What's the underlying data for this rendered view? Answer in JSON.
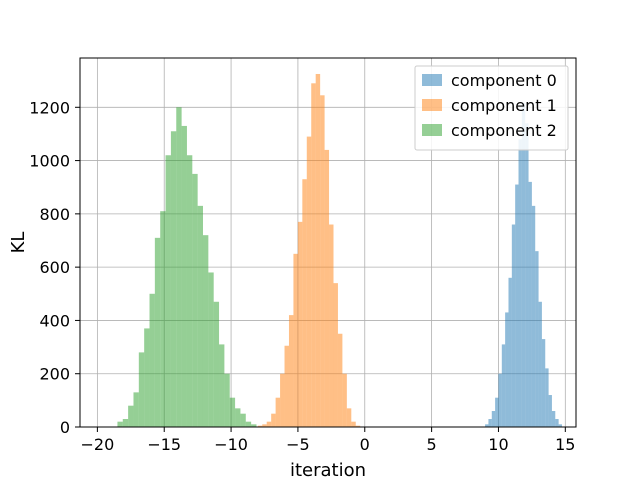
{
  "chart_data": {
    "type": "bar",
    "title": "",
    "xlabel": "iteration",
    "ylabel": "KL",
    "xlim": [
      -21.3,
      15.8
    ],
    "ylim": [
      0,
      1385
    ],
    "xticks": [
      -20,
      -15,
      -10,
      -5,
      0,
      5,
      10,
      15
    ],
    "yticks": [
      0,
      200,
      400,
      600,
      800,
      1000,
      1200
    ],
    "grid": true,
    "legend_position": "top-right",
    "series": [
      {
        "name": "component 0",
        "color": "#1f77b4",
        "alpha": 0.5,
        "bin_start": 9.0,
        "bin_width": 0.25,
        "values": [
          10,
          30,
          60,
          110,
          200,
          310,
          430,
          560,
          760,
          910,
          1080,
          1215,
          1140,
          920,
          830,
          660,
          470,
          330,
          220,
          120,
          60,
          30,
          10
        ]
      },
      {
        "name": "component 1",
        "color": "#ff7f0e",
        "alpha": 0.5,
        "bin_start": -8.0,
        "bin_width": 0.333,
        "values": [
          5,
          10,
          20,
          50,
          110,
          200,
          305,
          420,
          650,
          770,
          930,
          1090,
          1290,
          1325,
          1245,
          1040,
          760,
          540,
          350,
          200,
          70,
          20,
          5
        ]
      },
      {
        "name": "component 2",
        "color": "#2ca02c",
        "alpha": 0.5,
        "bin_start": -18.5,
        "bin_width": 0.4,
        "values": [
          20,
          30,
          80,
          130,
          280,
          370,
          500,
          710,
          810,
          1020,
          1110,
          1200,
          1130,
          1020,
          950,
          830,
          720,
          580,
          470,
          310,
          200,
          110,
          70,
          50,
          20,
          10
        ]
      }
    ]
  }
}
